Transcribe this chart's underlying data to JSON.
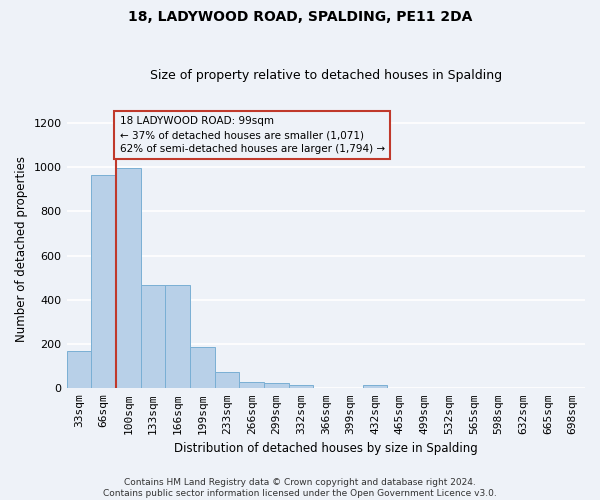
{
  "title": "18, LADYWOOD ROAD, SPALDING, PE11 2DA",
  "subtitle": "Size of property relative to detached houses in Spalding",
  "xlabel": "Distribution of detached houses by size in Spalding",
  "ylabel": "Number of detached properties",
  "categories": [
    "33sqm",
    "66sqm",
    "100sqm",
    "133sqm",
    "166sqm",
    "199sqm",
    "233sqm",
    "266sqm",
    "299sqm",
    "332sqm",
    "366sqm",
    "399sqm",
    "432sqm",
    "465sqm",
    "499sqm",
    "532sqm",
    "565sqm",
    "598sqm",
    "632sqm",
    "665sqm",
    "698sqm"
  ],
  "values": [
    170,
    965,
    995,
    468,
    468,
    185,
    73,
    28,
    22,
    13,
    0,
    0,
    13,
    0,
    0,
    0,
    0,
    0,
    0,
    0,
    0
  ],
  "bar_color": "#b8d0e8",
  "bar_edge_color": "#7aafd4",
  "property_line_color": "#c0392b",
  "annotation_text": "18 LADYWOOD ROAD: 99sqm\n← 37% of detached houses are smaller (1,071)\n62% of semi-detached houses are larger (1,794) →",
  "background_color": "#eef2f8",
  "grid_color": "#ffffff",
  "footer": "Contains HM Land Registry data © Crown copyright and database right 2024.\nContains public sector information licensed under the Open Government Licence v3.0.",
  "ylim": [
    0,
    1260
  ],
  "yticks": [
    0,
    200,
    400,
    600,
    800,
    1000,
    1200
  ],
  "title_fontsize": 10,
  "subtitle_fontsize": 9,
  "xlabel_fontsize": 8.5,
  "ylabel_fontsize": 8.5,
  "tick_fontsize": 8,
  "annotation_fontsize": 7.5,
  "footer_fontsize": 6.5
}
